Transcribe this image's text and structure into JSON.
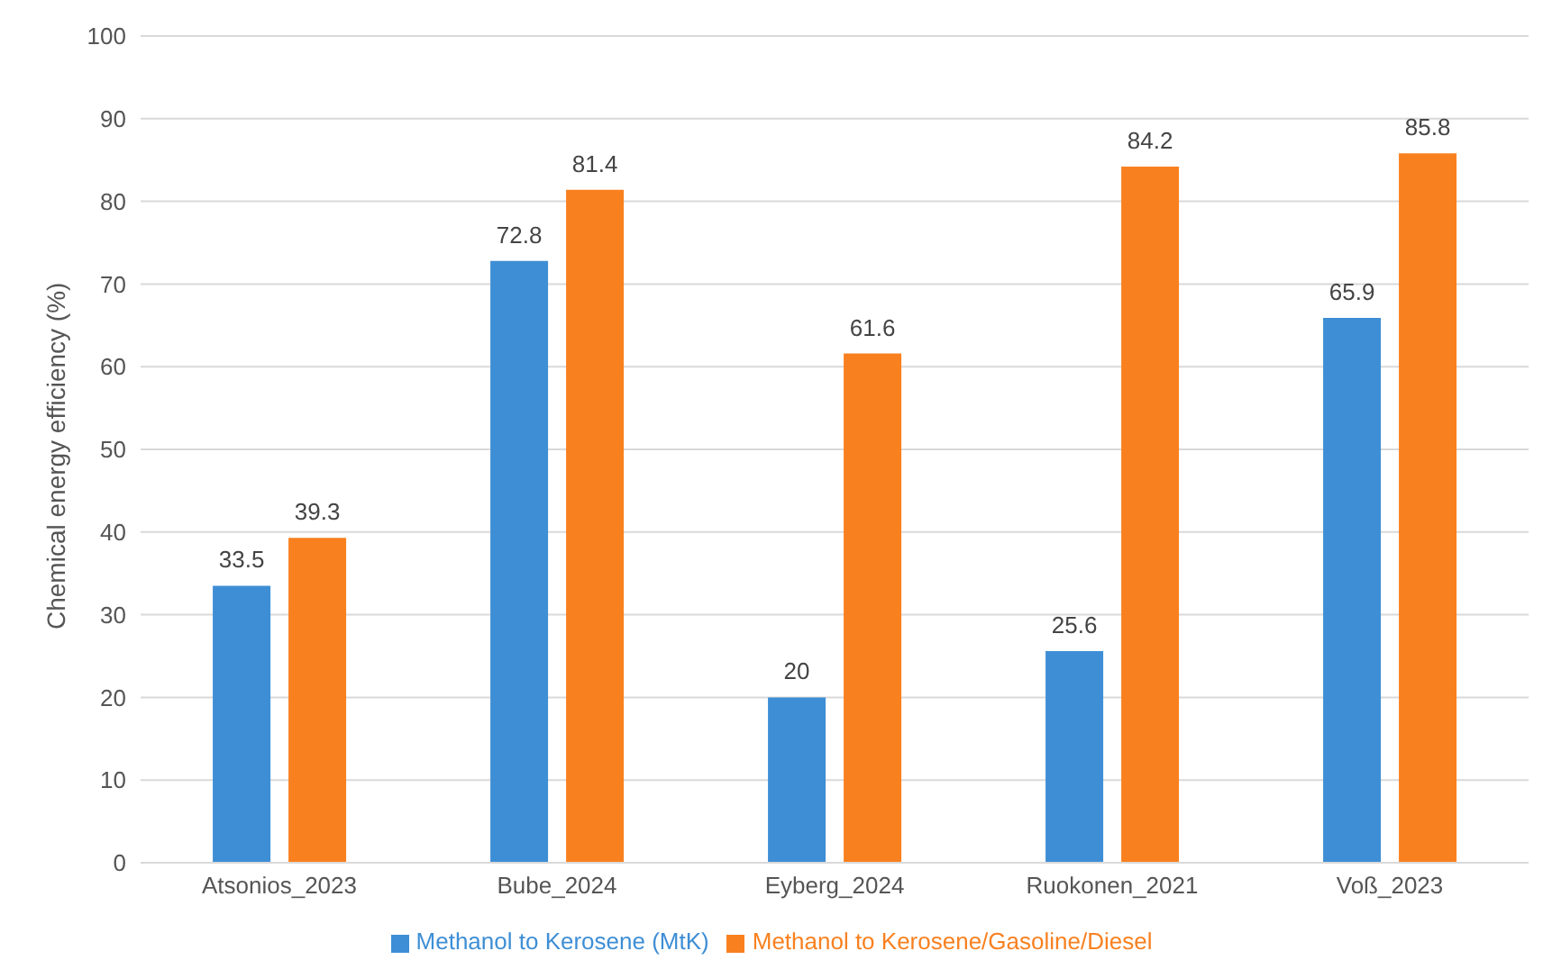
{
  "chart_data": {
    "type": "bar",
    "ylabel": "Chemical energy efficiency (%)",
    "categories": [
      "Atsonios_2023",
      "Bube_2024",
      "Eyberg_2024",
      "Ruokonen_2021",
      "Voß_2023"
    ],
    "series": [
      {
        "name": "Methanol to Kerosene (MtK)",
        "color": "#3e8ed5",
        "values": [
          33.5,
          72.8,
          20,
          25.6,
          65.9
        ]
      },
      {
        "name": "Methanol to Kerosene/Gasoline/Diesel",
        "color": "#f9801f",
        "values": [
          39.3,
          81.4,
          61.6,
          84.2,
          85.8
        ]
      }
    ],
    "ylim": [
      0,
      100
    ],
    "yticks": [
      0,
      10,
      20,
      30,
      40,
      50,
      60,
      70,
      80,
      90,
      100
    ],
    "grid": "y",
    "legend": "bottom",
    "data_labels": true
  }
}
